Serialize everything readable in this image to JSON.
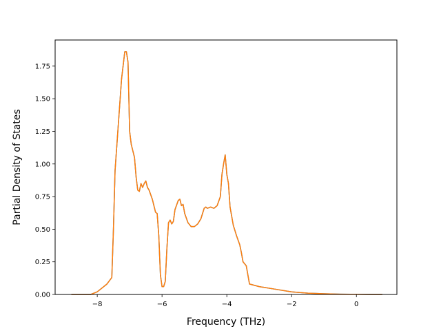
{
  "chart_data": {
    "type": "line",
    "title": "",
    "xlabel": "Frequency (THz)",
    "ylabel": "Partial Density of States",
    "xlim": [
      -9.3,
      1.25
    ],
    "ylim": [
      0.0,
      1.95
    ],
    "xticks": [
      -8,
      -6,
      -4,
      -2,
      0
    ],
    "xtick_labels": [
      "−8",
      "−6",
      "−4",
      "−2",
      "0"
    ],
    "yticks": [
      0.0,
      0.25,
      0.5,
      0.75,
      1.0,
      1.25,
      1.5,
      1.75
    ],
    "ytick_labels": [
      "0.00",
      "0.25",
      "0.50",
      "0.75",
      "1.00",
      "1.25",
      "1.50",
      "1.75"
    ],
    "grid": false,
    "series": [
      {
        "color": "#1f77b4",
        "x": [
          -8.8,
          -8.2,
          -8.0,
          -7.9,
          -7.7,
          -7.55,
          -7.5,
          -7.45,
          -7.35,
          -7.25,
          -7.15,
          -7.1,
          -7.05,
          -7.0,
          -6.95,
          -6.85,
          -6.8,
          -6.75,
          -6.7,
          -6.65,
          -6.6,
          -6.55,
          -6.5,
          -6.45,
          -6.4,
          -6.3,
          -6.2,
          -6.15,
          -6.1,
          -6.05,
          -6.0,
          -5.95,
          -5.9,
          -5.85,
          -5.8,
          -5.75,
          -5.7,
          -5.65,
          -5.6,
          -5.5,
          -5.45,
          -5.4,
          -5.35,
          -5.3,
          -5.2,
          -5.1,
          -5.0,
          -4.9,
          -4.8,
          -4.7,
          -4.65,
          -4.6,
          -4.5,
          -4.4,
          -4.3,
          -4.2,
          -4.15,
          -4.1,
          -4.05,
          -4.0,
          -3.95,
          -3.9,
          -3.8,
          -3.7,
          -3.6,
          -3.55,
          -3.5,
          -3.4,
          -3.3,
          -3.0,
          -2.5,
          -2.0,
          -1.5,
          -1.0,
          -0.5,
          0.0,
          0.5,
          0.8
        ],
        "y": [
          0.0,
          0.0,
          0.02,
          0.04,
          0.08,
          0.13,
          0.5,
          0.95,
          1.3,
          1.65,
          1.86,
          1.86,
          1.78,
          1.25,
          1.15,
          1.05,
          0.9,
          0.8,
          0.79,
          0.85,
          0.82,
          0.85,
          0.87,
          0.82,
          0.8,
          0.73,
          0.63,
          0.62,
          0.45,
          0.15,
          0.06,
          0.06,
          0.1,
          0.35,
          0.55,
          0.57,
          0.54,
          0.56,
          0.65,
          0.72,
          0.73,
          0.68,
          0.69,
          0.62,
          0.55,
          0.52,
          0.52,
          0.54,
          0.58,
          0.66,
          0.67,
          0.66,
          0.67,
          0.66,
          0.68,
          0.75,
          0.92,
          1.0,
          1.07,
          0.92,
          0.85,
          0.67,
          0.53,
          0.45,
          0.38,
          0.32,
          0.25,
          0.22,
          0.08,
          0.06,
          0.04,
          0.02,
          0.01,
          0.005,
          0.002,
          0.001,
          0.0,
          0.0
        ]
      },
      {
        "color": "#ff7f0e",
        "x": [
          -8.8,
          -8.2,
          -8.0,
          -7.9,
          -7.7,
          -7.55,
          -7.5,
          -7.45,
          -7.35,
          -7.25,
          -7.15,
          -7.1,
          -7.05,
          -7.0,
          -6.95,
          -6.85,
          -6.8,
          -6.75,
          -6.7,
          -6.65,
          -6.6,
          -6.55,
          -6.5,
          -6.45,
          -6.4,
          -6.3,
          -6.2,
          -6.15,
          -6.1,
          -6.05,
          -6.0,
          -5.95,
          -5.9,
          -5.85,
          -5.8,
          -5.75,
          -5.7,
          -5.65,
          -5.6,
          -5.5,
          -5.45,
          -5.4,
          -5.35,
          -5.3,
          -5.2,
          -5.1,
          -5.0,
          -4.9,
          -4.8,
          -4.7,
          -4.65,
          -4.6,
          -4.5,
          -4.4,
          -4.3,
          -4.2,
          -4.15,
          -4.1,
          -4.05,
          -4.0,
          -3.95,
          -3.9,
          -3.8,
          -3.7,
          -3.6,
          -3.55,
          -3.5,
          -3.4,
          -3.3,
          -3.0,
          -2.5,
          -2.0,
          -1.5,
          -1.0,
          -0.5,
          0.0,
          0.5,
          0.8
        ],
        "y": [
          0.0,
          0.0,
          0.02,
          0.04,
          0.08,
          0.13,
          0.5,
          0.95,
          1.3,
          1.65,
          1.86,
          1.86,
          1.78,
          1.25,
          1.15,
          1.05,
          0.9,
          0.8,
          0.79,
          0.85,
          0.82,
          0.85,
          0.87,
          0.82,
          0.8,
          0.73,
          0.63,
          0.62,
          0.45,
          0.15,
          0.06,
          0.06,
          0.1,
          0.35,
          0.55,
          0.57,
          0.54,
          0.56,
          0.65,
          0.72,
          0.73,
          0.68,
          0.69,
          0.62,
          0.55,
          0.52,
          0.52,
          0.54,
          0.58,
          0.66,
          0.67,
          0.66,
          0.67,
          0.66,
          0.68,
          0.75,
          0.92,
          1.0,
          1.07,
          0.92,
          0.85,
          0.67,
          0.53,
          0.45,
          0.38,
          0.32,
          0.25,
          0.22,
          0.08,
          0.06,
          0.04,
          0.02,
          0.01,
          0.005,
          0.002,
          0.001,
          0.0,
          0.0
        ]
      }
    ]
  }
}
